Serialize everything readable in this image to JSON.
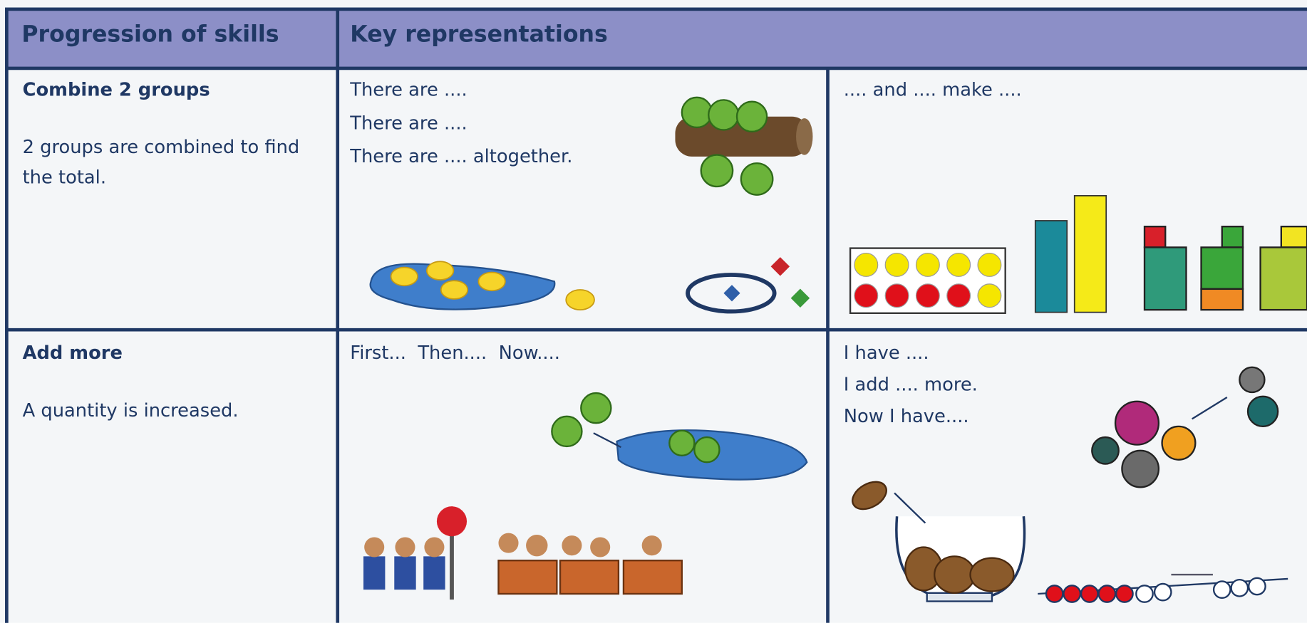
{
  "table": {
    "headers": [
      "Progression of skills",
      "Key representations"
    ],
    "rows": [
      {
        "skill": "Combine 2 groups",
        "description": "2 groups are combined to find the total.",
        "cells": [
          [
            "There are ....",
            "There are ....",
            "There are .... altogether."
          ],
          [
            ".... and .... make ...."
          ]
        ]
      },
      {
        "skill": "Add more",
        "description": "A quantity is increased.",
        "cells": [
          [
            "First...  Then....  Now...."
          ],
          [
            "I have ....",
            "I add .... more.",
            "Now I have...."
          ]
        ]
      }
    ]
  }
}
